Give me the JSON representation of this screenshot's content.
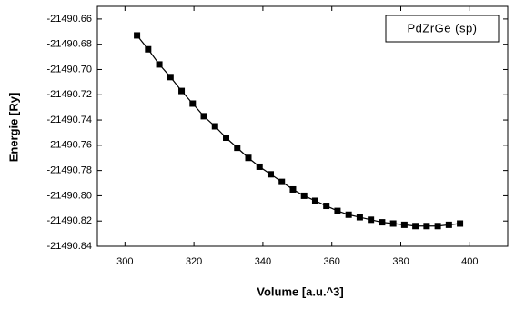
{
  "chart_data": {
    "type": "line",
    "xlabel": "Volume [a.u.^3]",
    "ylabel": "Energie [Ry]",
    "x": [
      303.5,
      306.73,
      309.96,
      313.19,
      316.42,
      319.65,
      322.88,
      326.11,
      329.34,
      332.57,
      335.8,
      339.03,
      342.26,
      345.49,
      348.72,
      351.95,
      355.18,
      358.41,
      361.64,
      364.87,
      368.1,
      371.33,
      374.56,
      377.79,
      381.02,
      384.25,
      387.48,
      390.71,
      393.94,
      397.17
    ],
    "series": [
      {
        "name": "PdZrGe (sp)",
        "color": "#000000",
        "values": [
          -21490.673,
          -21490.684,
          -21490.696,
          -21490.706,
          -21490.717,
          -21490.727,
          -21490.737,
          -21490.745,
          -21490.754,
          -21490.762,
          -21490.77,
          -21490.777,
          -21490.783,
          -21490.789,
          -21490.795,
          -21490.8,
          -21490.804,
          -21490.808,
          -21490.812,
          -21490.815,
          -21490.817,
          -21490.819,
          -21490.821,
          -21490.822,
          -21490.823,
          -21490.824,
          -21490.824,
          -21490.824,
          -21490.823,
          -21490.822
        ]
      }
    ],
    "xlim": [
      292,
      411
    ],
    "xticks": [
      300,
      320,
      340,
      360,
      380,
      400
    ],
    "ylim": [
      -21490.84,
      -21490.65
    ],
    "yticks": [
      -21490.84,
      -21490.82,
      {
        "value": -21490.8,
        "label": "-21490.80"
      },
      -21490.78,
      -21490.76,
      -21490.74,
      -21490.72,
      {
        "value": -21490.7,
        "label": "-21490.70"
      },
      -21490.68,
      -21490.66
    ],
    "legend": "upper right"
  }
}
